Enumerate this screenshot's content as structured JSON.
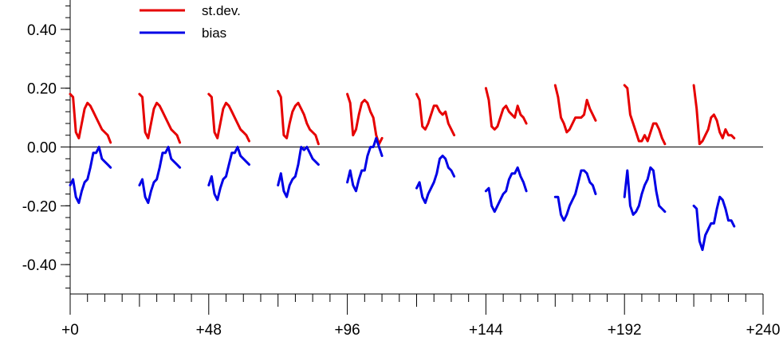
{
  "chart_data": {
    "type": "line",
    "title": "",
    "xlabel": "",
    "ylabel": "",
    "xlim": [
      0,
      240
    ],
    "ylim": [
      -0.5,
      0.5
    ],
    "x_ticks": [
      0,
      48,
      96,
      144,
      192,
      240
    ],
    "x_tick_labels": [
      "+0",
      "+48",
      "+96",
      "+144",
      "+192",
      "+240"
    ],
    "y_ticks": [
      -0.4,
      -0.2,
      0.0,
      0.2,
      0.4
    ],
    "y_tick_labels": [
      "-0.40",
      "-0.20",
      "0.00",
      "0.20",
      "0.40"
    ],
    "reference_line": 0.0,
    "grid": false,
    "legend_position": "top-left",
    "series": [
      {
        "name": "st.dev.",
        "color": "#e60000",
        "segments": [
          {
            "x": [
              0,
              1,
              2,
              3,
              4,
              5,
              6,
              7,
              8,
              9,
              10,
              11,
              12,
              13,
              14
            ],
            "y": [
              0.18,
              0.17,
              0.05,
              0.03,
              0.08,
              0.13,
              0.15,
              0.14,
              0.12,
              0.1,
              0.08,
              0.06,
              0.05,
              0.04,
              0.015
            ]
          },
          {
            "x": [
              24,
              25,
              26,
              27,
              28,
              29,
              30,
              31,
              32,
              33,
              34,
              35,
              36,
              37,
              38
            ],
            "y": [
              0.18,
              0.17,
              0.05,
              0.03,
              0.08,
              0.13,
              0.15,
              0.14,
              0.12,
              0.1,
              0.08,
              0.06,
              0.05,
              0.04,
              0.015
            ]
          },
          {
            "x": [
              48,
              49,
              50,
              51,
              52,
              53,
              54,
              55,
              56,
              57,
              58,
              59,
              60,
              61,
              62
            ],
            "y": [
              0.18,
              0.17,
              0.05,
              0.03,
              0.08,
              0.13,
              0.15,
              0.14,
              0.12,
              0.1,
              0.08,
              0.06,
              0.05,
              0.04,
              0.02
            ]
          },
          {
            "x": [
              72,
              73,
              74,
              75,
              76,
              77,
              78,
              79,
              80,
              81,
              82,
              83,
              84,
              85,
              86
            ],
            "y": [
              0.19,
              0.17,
              0.04,
              0.03,
              0.08,
              0.12,
              0.14,
              0.15,
              0.13,
              0.11,
              0.08,
              0.06,
              0.05,
              0.04,
              0.01
            ]
          },
          {
            "x": [
              96,
              97,
              98,
              99,
              100,
              101,
              102,
              103,
              104,
              105,
              106,
              107,
              108
            ],
            "y": [
              0.18,
              0.15,
              0.04,
              0.06,
              0.11,
              0.15,
              0.16,
              0.15,
              0.12,
              0.1,
              0.04,
              0.01,
              0.03
            ]
          },
          {
            "x": [
              120,
              121,
              122,
              123,
              124,
              125,
              126,
              127,
              128,
              129,
              130,
              131,
              132,
              133
            ],
            "y": [
              0.18,
              0.16,
              0.07,
              0.06,
              0.08,
              0.11,
              0.14,
              0.14,
              0.12,
              0.11,
              0.12,
              0.08,
              0.06,
              0.04
            ]
          },
          {
            "x": [
              144,
              145,
              146,
              147,
              148,
              149,
              150,
              151,
              152,
              153,
              154,
              155,
              156,
              157,
              158
            ],
            "y": [
              0.2,
              0.16,
              0.07,
              0.06,
              0.07,
              0.1,
              0.13,
              0.14,
              0.12,
              0.11,
              0.1,
              0.14,
              0.11,
              0.1,
              0.08
            ]
          },
          {
            "x": [
              168,
              169,
              170,
              171,
              172,
              173,
              174,
              175,
              176,
              177,
              178,
              179,
              180,
              181,
              182
            ],
            "y": [
              0.21,
              0.17,
              0.1,
              0.08,
              0.05,
              0.06,
              0.08,
              0.1,
              0.1,
              0.1,
              0.11,
              0.16,
              0.13,
              0.11,
              0.09
            ]
          },
          {
            "x": [
              192,
              193,
              194,
              195,
              196,
              197,
              198,
              199,
              200,
              201,
              202,
              203,
              204,
              205,
              206
            ],
            "y": [
              0.21,
              0.2,
              0.11,
              0.08,
              0.05,
              0.02,
              0.02,
              0.04,
              0.02,
              0.05,
              0.08,
              0.08,
              0.06,
              0.03,
              0.01
            ]
          },
          {
            "x": [
              216,
              217,
              218,
              219,
              220,
              221,
              222,
              223,
              224,
              225,
              226,
              227,
              228,
              229,
              230
            ],
            "y": [
              0.21,
              0.13,
              0.01,
              0.02,
              0.04,
              0.06,
              0.1,
              0.11,
              0.09,
              0.05,
              0.03,
              0.06,
              0.04,
              0.04,
              0.03
            ]
          }
        ]
      },
      {
        "name": "bias",
        "color": "#0000e6",
        "segments": [
          {
            "x": [
              0,
              1,
              2,
              3,
              4,
              5,
              6,
              7,
              8,
              9,
              10,
              11,
              12,
              13,
              14
            ],
            "y": [
              -0.13,
              -0.11,
              -0.17,
              -0.19,
              -0.15,
              -0.12,
              -0.11,
              -0.07,
              -0.02,
              -0.02,
              0.0,
              -0.04,
              -0.05,
              -0.06,
              -0.07
            ]
          },
          {
            "x": [
              24,
              25,
              26,
              27,
              28,
              29,
              30,
              31,
              32,
              33,
              34,
              35,
              36,
              37,
              38
            ],
            "y": [
              -0.13,
              -0.11,
              -0.17,
              -0.19,
              -0.15,
              -0.12,
              -0.11,
              -0.07,
              -0.02,
              -0.02,
              0.0,
              -0.04,
              -0.05,
              -0.06,
              -0.07
            ]
          },
          {
            "x": [
              48,
              49,
              50,
              51,
              52,
              53,
              54,
              55,
              56,
              57,
              58,
              59,
              60,
              61,
              62
            ],
            "y": [
              -0.13,
              -0.1,
              -0.16,
              -0.18,
              -0.14,
              -0.11,
              -0.1,
              -0.06,
              -0.02,
              -0.02,
              0.0,
              -0.03,
              -0.04,
              -0.05,
              -0.06
            ]
          },
          {
            "x": [
              72,
              73,
              74,
              75,
              76,
              77,
              78,
              79,
              80,
              81,
              82,
              83,
              84,
              85,
              86
            ],
            "y": [
              -0.13,
              -0.09,
              -0.15,
              -0.17,
              -0.13,
              -0.11,
              -0.1,
              -0.06,
              0.0,
              -0.01,
              0.0,
              -0.02,
              -0.04,
              -0.05,
              -0.06
            ]
          },
          {
            "x": [
              96,
              97,
              98,
              99,
              100,
              101,
              102,
              103,
              104,
              105,
              106,
              107,
              108
            ],
            "y": [
              -0.12,
              -0.08,
              -0.13,
              -0.15,
              -0.11,
              -0.08,
              -0.08,
              -0.03,
              0.0,
              0.0,
              0.03,
              0.0,
              -0.03
            ]
          },
          {
            "x": [
              120,
              121,
              122,
              123,
              124,
              125,
              126,
              127,
              128,
              129,
              130,
              131,
              132,
              133
            ],
            "y": [
              -0.14,
              -0.12,
              -0.17,
              -0.19,
              -0.16,
              -0.14,
              -0.12,
              -0.09,
              -0.04,
              -0.03,
              -0.04,
              -0.07,
              -0.08,
              -0.1
            ]
          },
          {
            "x": [
              144,
              145,
              146,
              147,
              148,
              149,
              150,
              151,
              152,
              153,
              154,
              155,
              156,
              157,
              158
            ],
            "y": [
              -0.15,
              -0.14,
              -0.2,
              -0.22,
              -0.2,
              -0.18,
              -0.16,
              -0.15,
              -0.11,
              -0.09,
              -0.09,
              -0.07,
              -0.1,
              -0.12,
              -0.15
            ]
          },
          {
            "x": [
              168,
              169,
              170,
              171,
              172,
              173,
              174,
              175,
              176,
              177,
              178,
              179,
              180,
              181,
              182
            ],
            "y": [
              -0.17,
              -0.17,
              -0.23,
              -0.25,
              -0.23,
              -0.2,
              -0.18,
              -0.16,
              -0.12,
              -0.08,
              -0.08,
              -0.09,
              -0.12,
              -0.13,
              -0.16
            ]
          },
          {
            "x": [
              192,
              193,
              194,
              195,
              196,
              197,
              198,
              199,
              200,
              201,
              202,
              203,
              204,
              205,
              206
            ],
            "y": [
              -0.17,
              -0.08,
              -0.2,
              -0.23,
              -0.22,
              -0.2,
              -0.16,
              -0.13,
              -0.11,
              -0.07,
              -0.08,
              -0.15,
              -0.2,
              -0.21,
              -0.22
            ]
          },
          {
            "x": [
              216,
              217,
              218,
              219,
              220,
              221,
              222,
              223,
              224,
              225,
              226,
              227,
              228,
              229,
              230
            ],
            "y": [
              -0.2,
              -0.21,
              -0.32,
              -0.35,
              -0.3,
              -0.28,
              -0.26,
              -0.26,
              -0.21,
              -0.17,
              -0.18,
              -0.21,
              -0.25,
              -0.25,
              -0.27
            ]
          }
        ]
      }
    ]
  }
}
